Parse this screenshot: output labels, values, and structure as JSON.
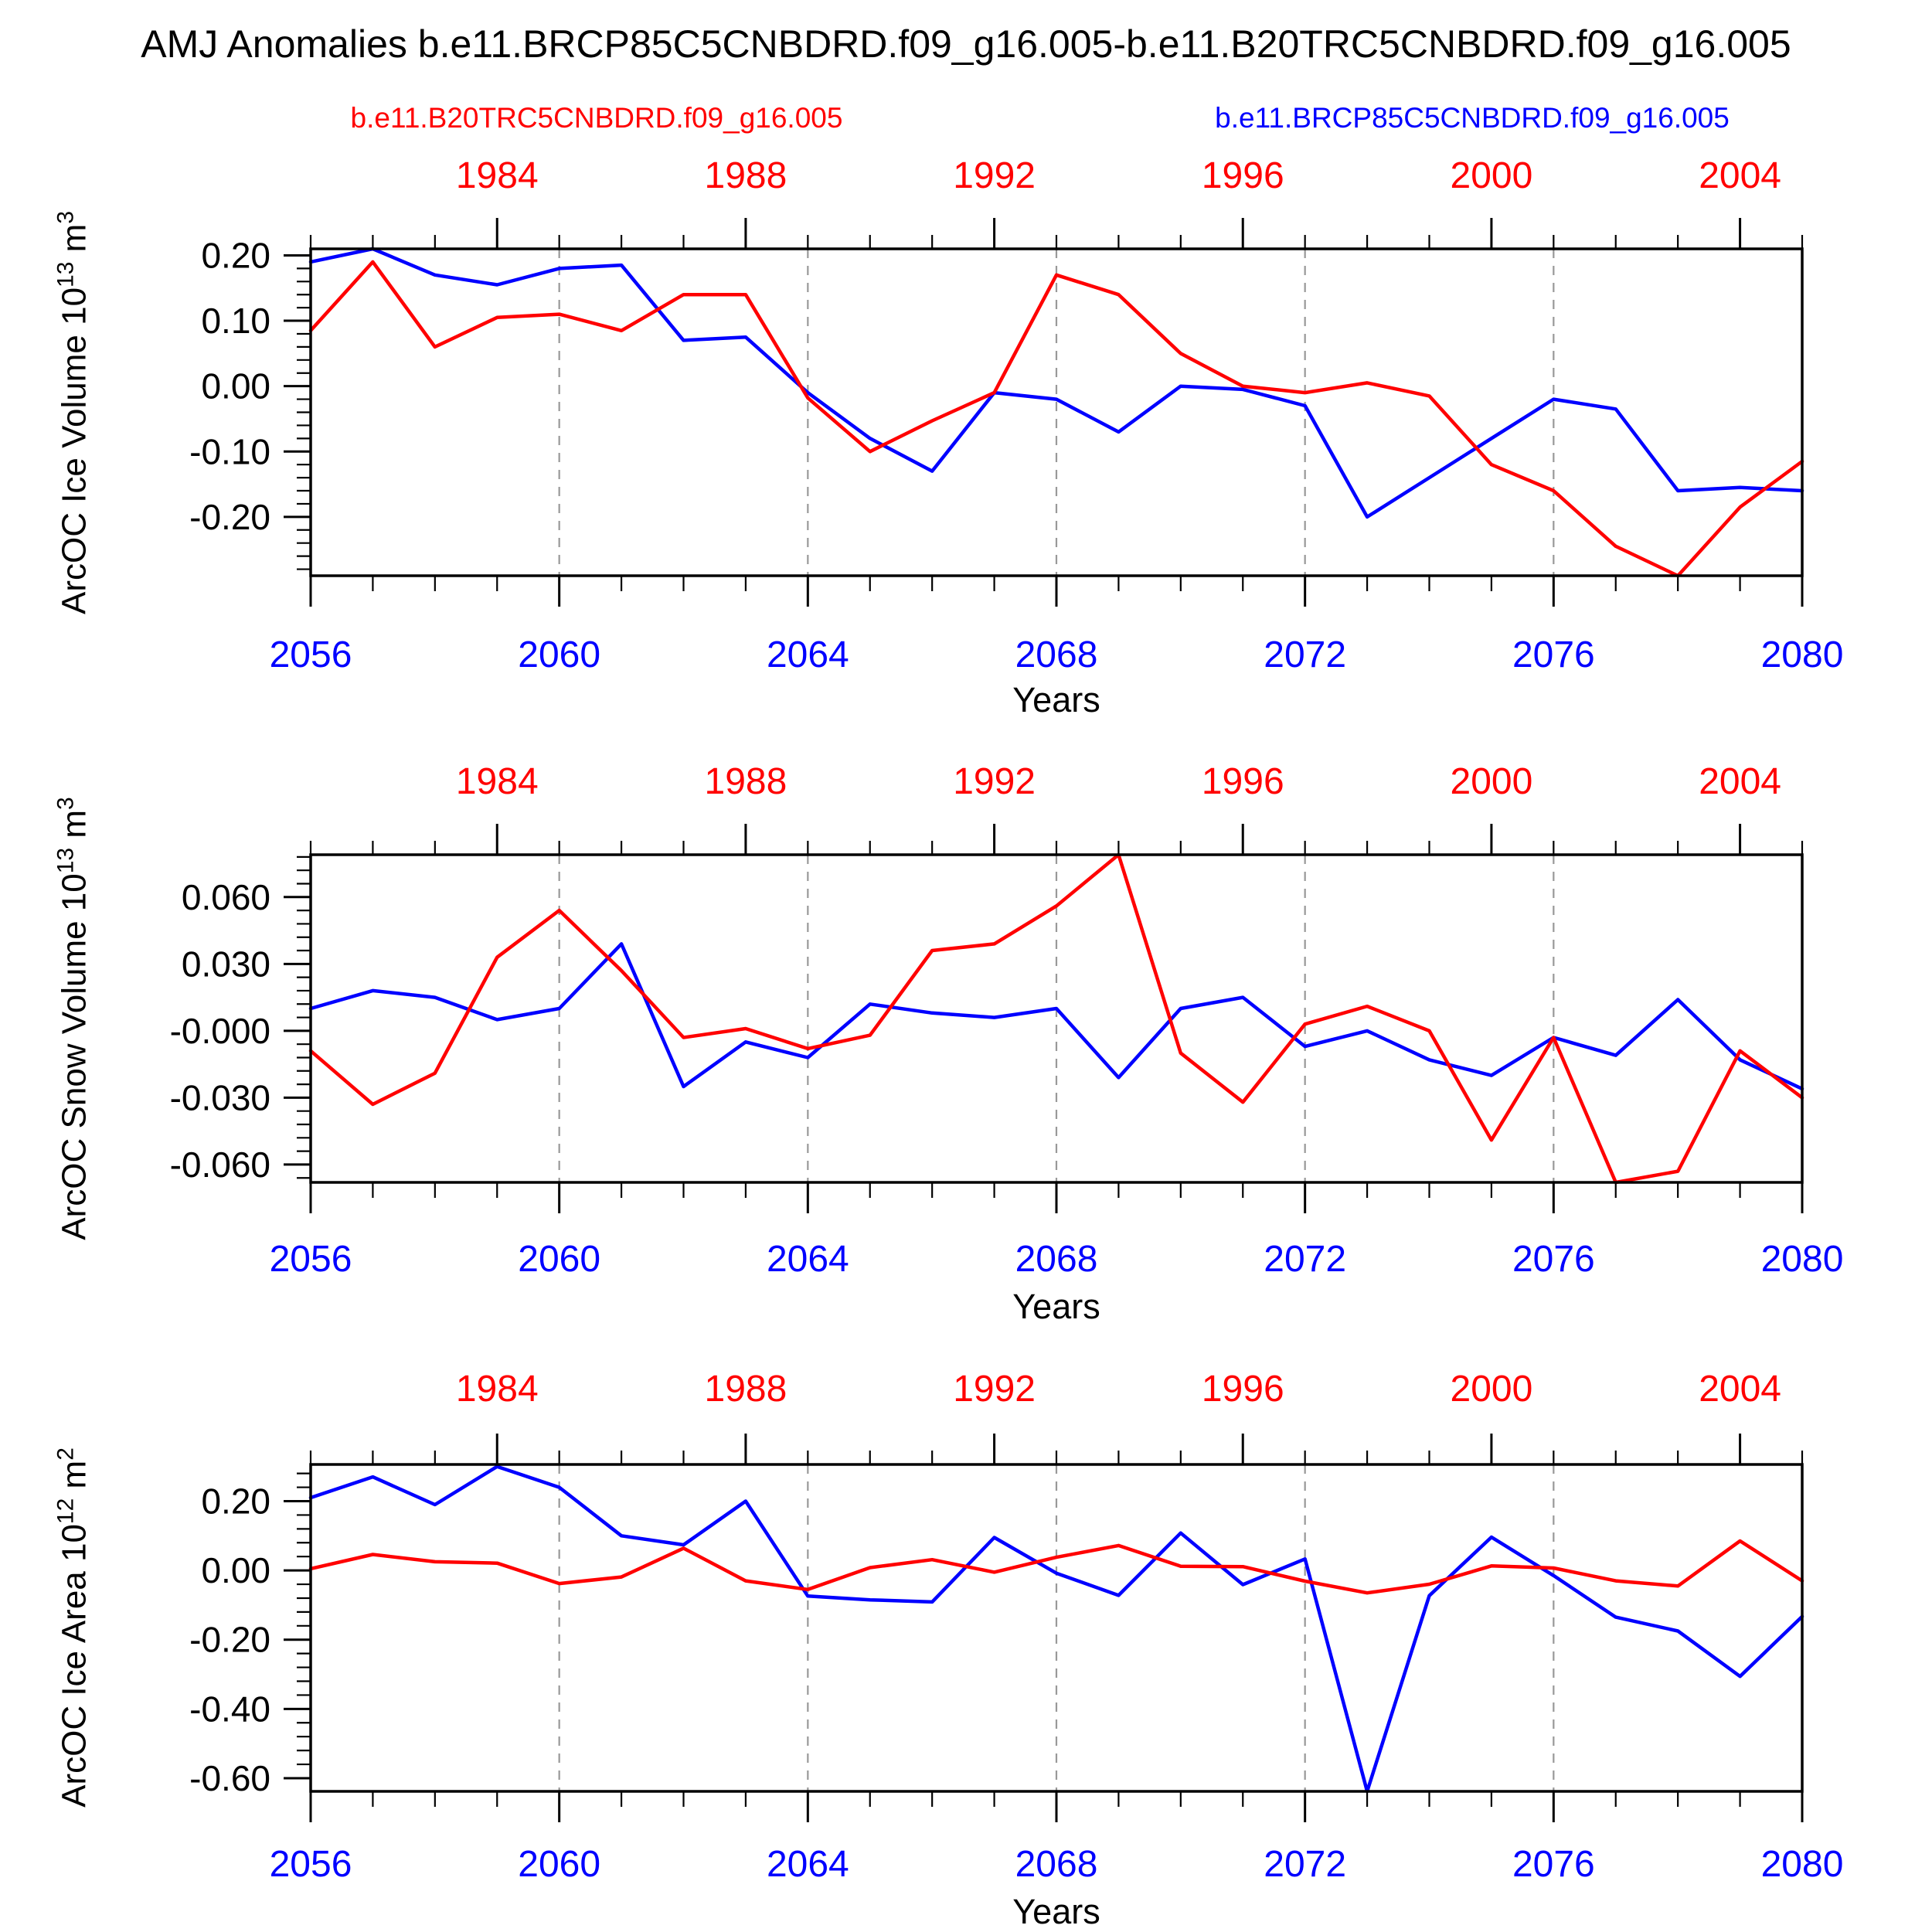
{
  "title": "AMJ Anomalies b.e11.BRCP85C5CNBDRD.f09_g16.005-b.e11.B20TRC5CNBDRD.f09_g16.005",
  "legend": [
    {
      "label": "b.e11.B20TRC5CNBDRD.f09_g16.005",
      "color": "#ff0000"
    },
    {
      "label": "b.e11.BRCP85C5CNBDRD.f09_g16.005",
      "color": "#0000ff"
    }
  ],
  "xlabel": "Years",
  "colors": {
    "red_series": "#ff0000",
    "blue_series": "#0000ff",
    "frame": "#000000",
    "gridline": "#999999"
  },
  "x_bottom": {
    "range": [
      2056,
      2080
    ],
    "major_ticks": [
      2056,
      2060,
      2064,
      2068,
      2072,
      2076,
      2080
    ],
    "color": "#0000ff"
  },
  "x_top": {
    "range": [
      1981,
      2005
    ],
    "major_ticks": [
      1984,
      1988,
      1992,
      1996,
      2000,
      2004
    ],
    "color": "#ff0000"
  },
  "gridline_years": [
    2060,
    2064,
    2068,
    2072,
    2076
  ],
  "chart_data": [
    {
      "type": "line",
      "ylabel_prefix": "ArcOC Ice Volume 10",
      "ylabel_exp": "13",
      "ylabel_unit": " m",
      "ylabel_unit_exp": "3",
      "ylim": [
        -0.29,
        0.21
      ],
      "ytick_values": [
        0.2,
        0.1,
        0.0,
        -0.1,
        -0.2
      ],
      "ytick_labels": [
        "0.20",
        "0.10",
        "0.00",
        "-0.10",
        "-0.20"
      ],
      "y_minor_step": 0.02,
      "grid": "vertical-dashed",
      "legend_position": "top",
      "series": [
        {
          "name": "b.e11.B20TRC5CNBDRD.f09_g16.005",
          "color": "#ff0000",
          "axis": "top",
          "x": [
            1981,
            1982,
            1983,
            1984,
            1985,
            1986,
            1987,
            1988,
            1989,
            1990,
            1991,
            1992,
            1993,
            1994,
            1995,
            1996,
            1997,
            1998,
            1999,
            2000,
            2001,
            2002,
            2003,
            2004,
            2005
          ],
          "y": [
            0.085,
            0.19,
            0.06,
            0.105,
            0.11,
            0.085,
            0.14,
            0.14,
            -0.018,
            -0.1,
            -0.053,
            -0.01,
            0.17,
            0.14,
            0.05,
            0.0,
            -0.01,
            0.005,
            -0.015,
            -0.12,
            -0.16,
            -0.245,
            -0.29,
            -0.185,
            -0.115
          ]
        },
        {
          "name": "b.e11.BRCP85C5CNBDRD.f09_g16.005",
          "color": "#0000ff",
          "axis": "bottom",
          "x": [
            2056,
            2057,
            2058,
            2059,
            2060,
            2061,
            2062,
            2063,
            2064,
            2065,
            2066,
            2067,
            2068,
            2069,
            2070,
            2071,
            2072,
            2073,
            2074,
            2075,
            2076,
            2077,
            2078,
            2079,
            2080
          ],
          "y": [
            0.19,
            0.21,
            0.17,
            0.155,
            0.18,
            0.185,
            0.07,
            0.075,
            -0.01,
            -0.08,
            -0.13,
            -0.01,
            -0.02,
            -0.07,
            0.0,
            -0.005,
            -0.03,
            -0.2,
            -0.14,
            -0.08,
            -0.02,
            -0.035,
            -0.16,
            -0.155,
            -0.16
          ]
        }
      ]
    },
    {
      "type": "line",
      "ylabel_prefix": "ArcOC Snow Volume 10",
      "ylabel_exp": "13",
      "ylabel_unit": " m",
      "ylabel_unit_exp": "3",
      "ylim": [
        -0.068,
        0.079
      ],
      "ytick_values": [
        0.06,
        0.03,
        0.0,
        -0.03,
        -0.06
      ],
      "ytick_labels": [
        "0.060",
        "0.030",
        "-0.000",
        "-0.030",
        "-0.060"
      ],
      "y_minor_step": 0.006,
      "grid": "vertical-dashed",
      "legend_position": "none",
      "series": [
        {
          "name": "b.e11.B20TRC5CNBDRD.f09_g16.005",
          "color": "#ff0000",
          "axis": "top",
          "x": [
            1981,
            1982,
            1983,
            1984,
            1985,
            1986,
            1987,
            1988,
            1989,
            1990,
            1991,
            1992,
            1993,
            1994,
            1995,
            1996,
            1997,
            1998,
            1999,
            2000,
            2001,
            2002,
            2003,
            2004,
            2005
          ],
          "y": [
            -0.009,
            -0.033,
            -0.019,
            0.033,
            0.054,
            0.027,
            -0.003,
            0.001,
            -0.008,
            -0.002,
            0.036,
            0.039,
            0.056,
            0.079,
            -0.01,
            -0.032,
            0.003,
            0.011,
            0.0,
            -0.049,
            -0.003,
            -0.068,
            -0.063,
            -0.009,
            -0.03
          ]
        },
        {
          "name": "b.e11.BRCP85C5CNBDRD.f09_g16.005",
          "color": "#0000ff",
          "axis": "bottom",
          "x": [
            2056,
            2057,
            2058,
            2059,
            2060,
            2061,
            2062,
            2063,
            2064,
            2065,
            2066,
            2067,
            2068,
            2069,
            2070,
            2071,
            2072,
            2073,
            2074,
            2075,
            2076,
            2077,
            2078,
            2079,
            2080
          ],
          "y": [
            0.01,
            0.018,
            0.015,
            0.005,
            0.01,
            0.039,
            -0.025,
            -0.005,
            -0.012,
            0.012,
            0.008,
            0.006,
            0.01,
            -0.021,
            0.01,
            0.015,
            -0.007,
            0.0,
            -0.013,
            -0.02,
            -0.003,
            -0.011,
            0.014,
            -0.013,
            -0.026
          ]
        }
      ]
    },
    {
      "type": "line",
      "ylabel_prefix": "ArcOC Ice Area 10",
      "ylabel_exp": "12",
      "ylabel_unit": " m",
      "ylabel_unit_exp": "2",
      "ylim": [
        -0.638,
        0.306
      ],
      "ytick_values": [
        0.2,
        0.0,
        -0.2,
        -0.4,
        -0.6
      ],
      "ytick_labels": [
        "0.20",
        "0.00",
        "-0.20",
        "-0.40",
        "-0.60"
      ],
      "y_minor_step": 0.04,
      "grid": "vertical-dashed",
      "legend_position": "none",
      "series": [
        {
          "name": "b.e11.B20TRC5CNBDRD.f09_g16.005",
          "color": "#ff0000",
          "axis": "top",
          "x": [
            1981,
            1982,
            1983,
            1984,
            1985,
            1986,
            1987,
            1988,
            1989,
            1990,
            1991,
            1992,
            1993,
            1994,
            1995,
            1996,
            1997,
            1998,
            1999,
            2000,
            2001,
            2002,
            2003,
            2004,
            2005
          ],
          "y": [
            0.005,
            0.046,
            0.025,
            0.021,
            -0.038,
            -0.019,
            0.064,
            -0.03,
            -0.055,
            0.008,
            0.031,
            -0.005,
            0.038,
            0.072,
            0.012,
            0.011,
            -0.031,
            -0.065,
            -0.04,
            0.013,
            0.007,
            -0.03,
            -0.045,
            0.085,
            -0.03
          ]
        },
        {
          "name": "b.e11.BRCP85C5CNBDRD.f09_g16.005",
          "color": "#0000ff",
          "axis": "bottom",
          "x": [
            2056,
            2057,
            2058,
            2059,
            2060,
            2061,
            2062,
            2063,
            2064,
            2065,
            2066,
            2067,
            2068,
            2069,
            2070,
            2071,
            2072,
            2073,
            2074,
            2075,
            2076,
            2077,
            2078,
            2079,
            2080
          ],
          "y": [
            0.21,
            0.27,
            0.19,
            0.3,
            0.24,
            0.1,
            0.074,
            0.2,
            -0.074,
            -0.085,
            -0.091,
            0.095,
            -0.008,
            -0.072,
            0.108,
            -0.041,
            0.033,
            -0.638,
            -0.073,
            0.096,
            -0.015,
            -0.135,
            -0.175,
            -0.306,
            -0.133
          ]
        }
      ]
    }
  ]
}
